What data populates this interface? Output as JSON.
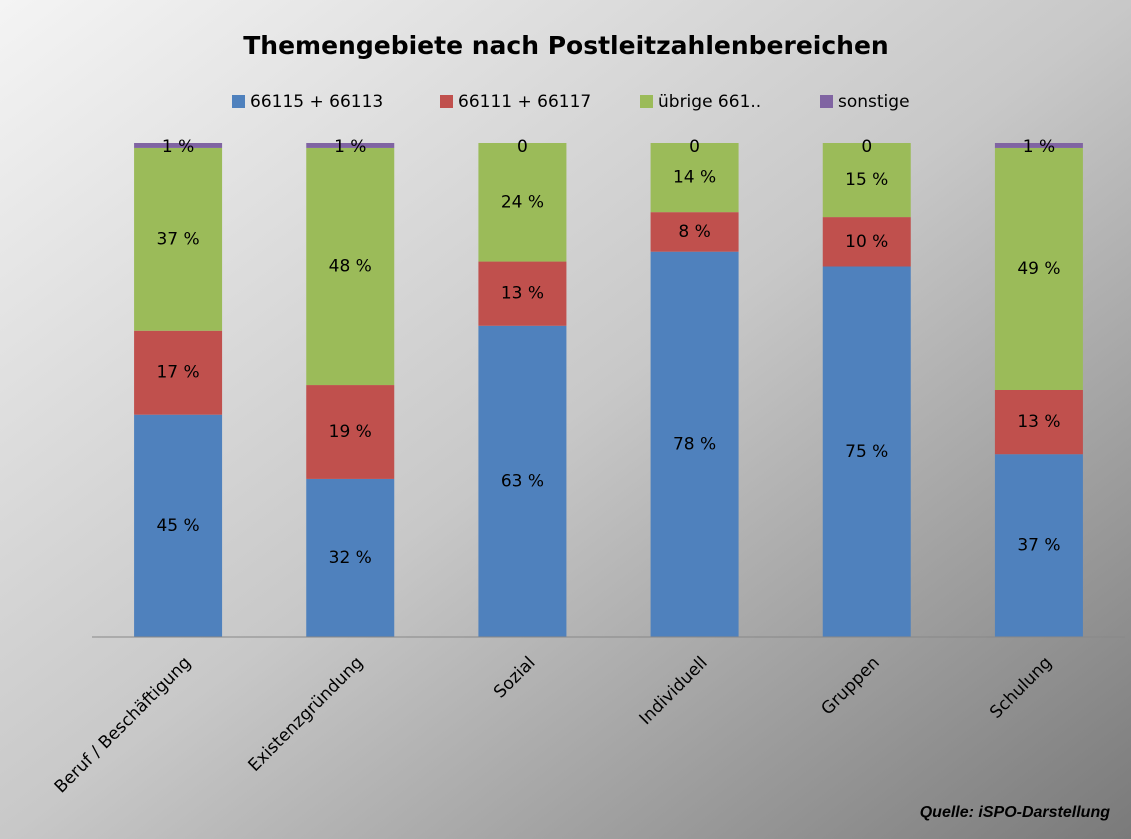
{
  "chart_data": {
    "type": "stacked_bar_100",
    "title": "Themengebiete nach Postleitzahlenbereichen",
    "categories": [
      "Beruf / Beschäftigung",
      "Existenzgründung",
      "Sozial",
      "Individuell",
      "Gruppen",
      "Schulung"
    ],
    "series": [
      {
        "name": "66115 + 66113",
        "color": "#4f81bd",
        "values": [
          45,
          32,
          63,
          78,
          75,
          37
        ],
        "value_labels": [
          "45 %",
          "32 %",
          "63 %",
          "78 %",
          "75 %",
          "37 %"
        ]
      },
      {
        "name": "66111 + 66117",
        "color": "#c0504d",
        "values": [
          17,
          19,
          13,
          8,
          10,
          13
        ],
        "value_labels": [
          "17 %",
          "19 %",
          "13 %",
          "8 %",
          "10 %",
          "13 %"
        ]
      },
      {
        "name": "übrige 661..",
        "color": "#9bbb59",
        "values": [
          37,
          48,
          24,
          14,
          15,
          49
        ],
        "value_labels": [
          "37 %",
          "48 %",
          "24 %",
          "14 %",
          "15 %",
          "49 %"
        ]
      },
      {
        "name": "sonstige",
        "color": "#8064a2",
        "values": [
          1,
          1,
          0,
          0,
          0,
          1
        ],
        "value_labels": [
          "1 %",
          "1 %",
          "0",
          "0",
          "0",
          "1 %"
        ]
      }
    ],
    "legend": "top",
    "source": "Quelle: iSPO-Darstellung"
  }
}
